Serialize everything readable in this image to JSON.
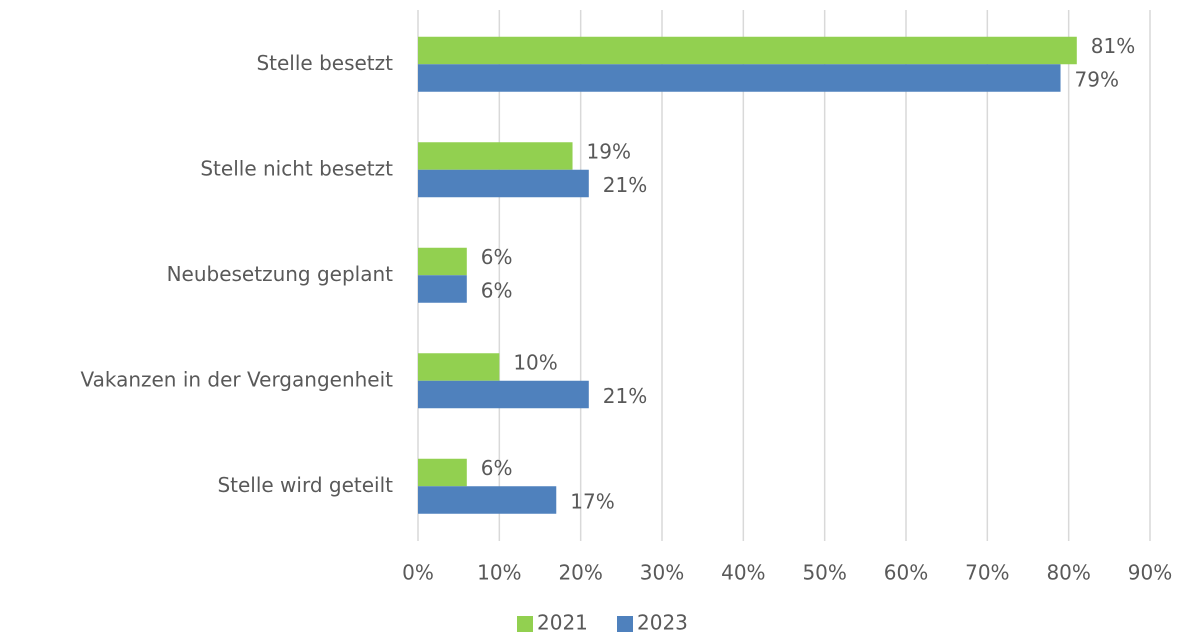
{
  "chart_data": {
    "type": "bar",
    "orientation": "horizontal",
    "categories": [
      "Stelle besetzt",
      "Stelle nicht besetzt",
      "Neubesetzung geplant",
      "Vakanzen in der Vergangenheit",
      "Stelle wird geteilt"
    ],
    "series": [
      {
        "name": "2021",
        "color": "#92d050",
        "values": [
          81,
          19,
          6,
          10,
          6
        ],
        "value_labels": [
          "81%",
          "19%",
          "6%",
          "10%",
          "6%"
        ]
      },
      {
        "name": "2023",
        "color": "#4f81bd",
        "values": [
          79,
          21,
          6,
          21,
          17
        ],
        "value_labels": [
          "79%",
          "21%",
          "6%",
          "21%",
          "17%"
        ]
      }
    ],
    "xlim": [
      0,
      90
    ],
    "xticks": [
      {
        "value": 0,
        "label": "0%"
      },
      {
        "value": 10,
        "label": "10%"
      },
      {
        "value": 20,
        "label": "20%"
      },
      {
        "value": 30,
        "label": "30%"
      },
      {
        "value": 40,
        "label": "40%"
      },
      {
        "value": 50,
        "label": "50%"
      },
      {
        "value": 60,
        "label": "60%"
      },
      {
        "value": 70,
        "label": "70%"
      },
      {
        "value": 80,
        "label": "80%"
      },
      {
        "value": 90,
        "label": "90%"
      }
    ],
    "grid": true,
    "legend": "bottom"
  }
}
